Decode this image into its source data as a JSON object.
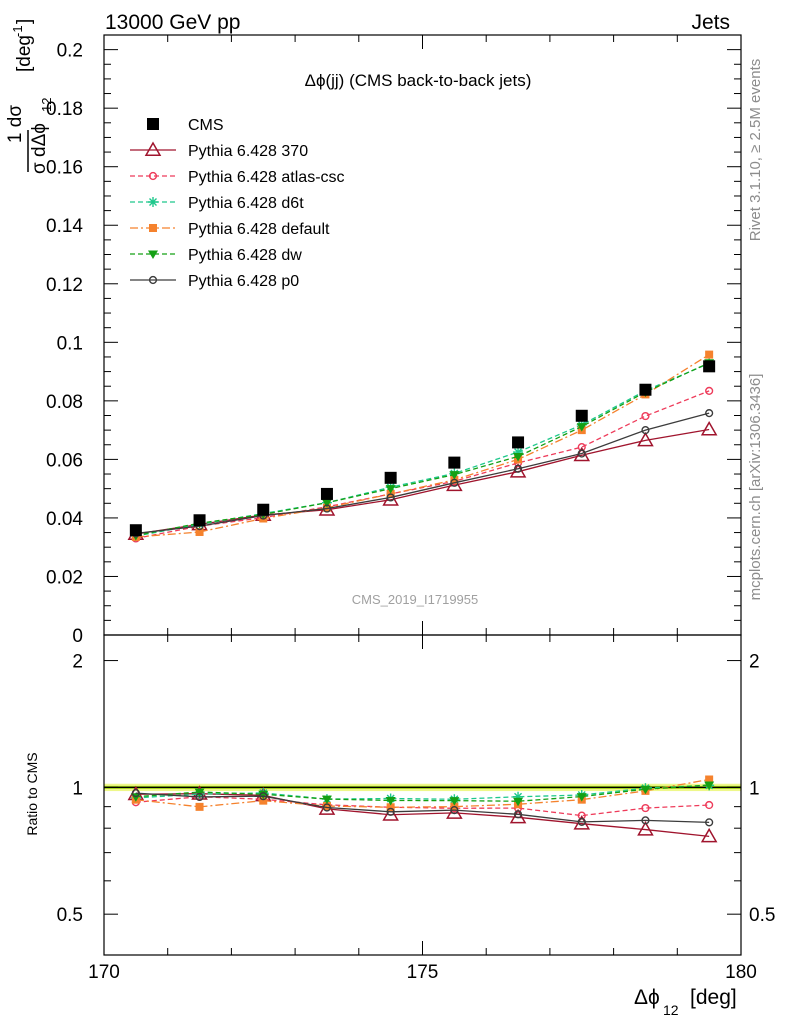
{
  "header": {
    "left": "13000 GeV pp",
    "right": "Jets"
  },
  "side_labels": {
    "rivet": "Rivet 3.1.10, ≥ 2.5M events",
    "mcplots": "mcplots.cern.ch [arXiv:1306.3436]"
  },
  "colors": {
    "CMS": "#000000",
    "Pythia 6.428 370": "#a0142d",
    "Pythia 6.428 atlas-csc": "#ee3b5a",
    "Pythia 6.428 d6t": "#1ec88c",
    "Pythia 6.428 default": "#f5822d",
    "Pythia 6.428 dw": "#14a014",
    "Pythia 6.428 p0": "#3c3c3c",
    "band": "#eef88a",
    "band_line": "#9ccf14"
  },
  "chart_data": [
    {
      "type": "line",
      "title": "Δϕ(jj) (CMS back-to-back jets)",
      "watermark": "CMS_2019_I1719955",
      "ylabel": "1/σ dσ/dΔϕ₁₂ [deg⁻¹]",
      "ylabel_parts": {
        "num": "1  dσ",
        "den": "σ dΔϕ",
        "sub": "12",
        "unit": "[deg",
        "exp": "-1",
        "close": "]"
      },
      "xlim": [
        170,
        180
      ],
      "ylim": [
        0,
        0.205
      ],
      "yticks": [
        "0",
        "0.02",
        "0.04",
        "0.06",
        "0.08",
        "0.1",
        "0.12",
        "0.14",
        "0.16",
        "0.18",
        "0.2"
      ],
      "legend_position": "top-left",
      "x": [
        170.5,
        171.5,
        172.5,
        173.5,
        174.5,
        175.5,
        176.5,
        177.5,
        178.5,
        179.5
      ],
      "series": [
        {
          "name": "CMS",
          "style": "square",
          "line": "none",
          "values": [
            0.0358,
            0.0392,
            0.0428,
            0.0482,
            0.0537,
            0.0589,
            0.0658,
            0.0749,
            0.0838,
            0.0918
          ]
        },
        {
          "name": "Pythia 6.428 370",
          "style": "triangle-open",
          "line": "solid",
          "values": [
            0.0345,
            0.0378,
            0.041,
            0.0428,
            0.0462,
            0.0512,
            0.0558,
            0.0614,
            0.0665,
            0.0702
          ]
        },
        {
          "name": "Pythia 6.428 atlas-csc",
          "style": "circle-open",
          "line": "dashed",
          "values": [
            0.033,
            0.0372,
            0.0401,
            0.0438,
            0.0482,
            0.0525,
            0.0588,
            0.0642,
            0.0748,
            0.0834
          ]
        },
        {
          "name": "Pythia 6.428 d6t",
          "style": "star",
          "line": "dashed",
          "values": [
            0.0338,
            0.0378,
            0.0415,
            0.0452,
            0.0505,
            0.0552,
            0.0625,
            0.0718,
            0.0835,
            0.0928
          ]
        },
        {
          "name": "Pythia 6.428 default",
          "style": "square-small",
          "line": "dashdot",
          "values": [
            0.0335,
            0.0352,
            0.0398,
            0.0435,
            0.0482,
            0.053,
            0.06,
            0.07,
            0.0822,
            0.0958
          ]
        },
        {
          "name": "Pythia 6.428 dw",
          "style": "triangle-down",
          "line": "dashed",
          "values": [
            0.034,
            0.0382,
            0.0412,
            0.0452,
            0.05,
            0.0548,
            0.061,
            0.0712,
            0.083,
            0.093
          ]
        },
        {
          "name": "Pythia 6.428 p0",
          "style": "circle-open",
          "line": "solid",
          "values": [
            0.0347,
            0.0372,
            0.0408,
            0.0432,
            0.047,
            0.052,
            0.0568,
            0.062,
            0.07,
            0.0758
          ]
        }
      ]
    },
    {
      "type": "line",
      "ylabel": "Ratio to CMS",
      "xlabel": "Δϕ₁₂ [deg]",
      "xlabel_parts": {
        "main": "Δϕ",
        "sub": "12",
        "unit": "[deg]"
      },
      "xlim": [
        170,
        180
      ],
      "xticks": [
        "170",
        "175",
        "180"
      ],
      "ylim": [
        0.4,
        2.3
      ],
      "yscale": "log",
      "yticks": [
        "0.5",
        "1",
        "2"
      ],
      "band": [
        0.98,
        1.02
      ],
      "x": [
        170.5,
        171.5,
        172.5,
        173.5,
        174.5,
        175.5,
        176.5,
        177.5,
        178.5,
        179.5
      ],
      "series": [
        {
          "name": "Pythia 6.428 370",
          "values": [
            0.963,
            0.966,
            0.957,
            0.889,
            0.861,
            0.87,
            0.849,
            0.82,
            0.794,
            0.765
          ]
        },
        {
          "name": "Pythia 6.428 atlas-csc",
          "values": [
            0.922,
            0.95,
            0.937,
            0.909,
            0.897,
            0.892,
            0.893,
            0.857,
            0.893,
            0.908
          ]
        },
        {
          "name": "Pythia 6.428 d6t",
          "values": [
            0.944,
            0.964,
            0.97,
            0.938,
            0.941,
            0.937,
            0.95,
            0.959,
            0.996,
            1.011
          ]
        },
        {
          "name": "Pythia 6.428 default",
          "values": [
            0.935,
            0.899,
            0.93,
            0.903,
            0.897,
            0.9,
            0.912,
            0.935,
            0.981,
            1.044
          ]
        },
        {
          "name": "Pythia 6.428 dw",
          "values": [
            0.95,
            0.975,
            0.963,
            0.938,
            0.931,
            0.93,
            0.927,
            0.951,
            0.99,
            1.013
          ]
        },
        {
          "name": "Pythia 6.428 p0",
          "values": [
            0.969,
            0.949,
            0.953,
            0.896,
            0.875,
            0.883,
            0.863,
            0.828,
            0.835,
            0.826
          ]
        }
      ]
    }
  ]
}
